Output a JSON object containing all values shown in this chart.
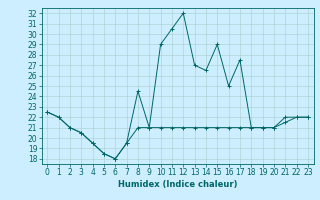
{
  "xlabel": "Humidex (Indice chaleur)",
  "background_color": "#cceeff",
  "grid_color": "#aacccc",
  "line_color": "#006666",
  "xlim": [
    -0.5,
    23.5
  ],
  "ylim": [
    17.5,
    32.5
  ],
  "xticks": [
    0,
    1,
    2,
    3,
    4,
    5,
    6,
    7,
    8,
    9,
    10,
    11,
    12,
    13,
    14,
    15,
    16,
    17,
    18,
    19,
    20,
    21,
    22,
    23
  ],
  "yticks": [
    18,
    19,
    20,
    21,
    22,
    23,
    24,
    25,
    26,
    27,
    28,
    29,
    30,
    31,
    32
  ],
  "series1_x": [
    0,
    1,
    2,
    3,
    4,
    5,
    6,
    7,
    8,
    9,
    10,
    11,
    12,
    13,
    14,
    15,
    16,
    17,
    18,
    19,
    20,
    21,
    22,
    23
  ],
  "series1_y": [
    22.5,
    22.0,
    21.0,
    20.5,
    19.5,
    18.5,
    18.0,
    19.5,
    24.5,
    21.0,
    29.0,
    30.5,
    32.0,
    27.0,
    26.5,
    29.0,
    25.0,
    27.5,
    21.0,
    21.0,
    21.0,
    22.0,
    22.0,
    22.0
  ],
  "series2_x": [
    0,
    1,
    2,
    3,
    4,
    5,
    6,
    7,
    8,
    9,
    10,
    11,
    12,
    13,
    14,
    15,
    16,
    17,
    18,
    19,
    20,
    21,
    22,
    23
  ],
  "series2_y": [
    22.5,
    22.0,
    21.0,
    20.5,
    19.5,
    18.5,
    18.0,
    19.5,
    21.0,
    21.0,
    21.0,
    21.0,
    21.0,
    21.0,
    21.0,
    21.0,
    21.0,
    21.0,
    21.0,
    21.0,
    21.0,
    21.5,
    22.0,
    22.0
  ],
  "tick_fontsize": 5.5,
  "xlabel_fontsize": 6,
  "linewidth": 0.7,
  "markersize": 2.5
}
